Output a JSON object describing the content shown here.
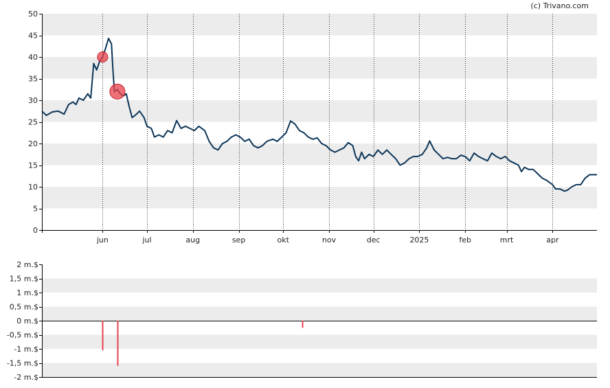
{
  "copyright": "(c) Trivano.com",
  "chart_data": [
    {
      "type": "line",
      "title": "",
      "xlabel": "",
      "ylabel": "",
      "ylim": [
        0,
        50
      ],
      "yticks": [
        "0",
        "5",
        "10",
        "15",
        "20",
        "25",
        "30",
        "35",
        "40",
        "45",
        "50"
      ],
      "grid": true,
      "x_tick_labels": [
        "jun",
        "jul",
        "aug",
        "sep",
        "okt",
        "nov",
        "dec",
        "2025",
        "feb",
        "mrt",
        "apr"
      ],
      "x_domain": [
        "2024-04-21",
        "2025-05-01"
      ],
      "x_ticks": [
        "2024-06-01",
        "2024-07-01",
        "2024-08-01",
        "2024-09-01",
        "2024-10-01",
        "2024-11-01",
        "2024-12-01",
        "2025-01-01",
        "2025-02-01",
        "2025-03-01",
        "2025-04-01"
      ],
      "series": [
        {
          "color": "#0b3558",
          "points": [
            [
              "2024-04-21",
              27.5
            ],
            [
              "2024-04-24",
              26.5
            ],
            [
              "2024-04-28",
              27.3
            ],
            [
              "2024-05-02",
              27.5
            ],
            [
              "2024-05-06",
              26.8
            ],
            [
              "2024-05-09",
              29.0
            ],
            [
              "2024-05-12",
              29.6
            ],
            [
              "2024-05-14",
              29.0
            ],
            [
              "2024-05-16",
              30.5
            ],
            [
              "2024-05-19",
              30.0
            ],
            [
              "2024-05-22",
              31.5
            ],
            [
              "2024-05-24",
              30.5
            ],
            [
              "2024-05-26",
              38.5
            ],
            [
              "2024-05-28",
              37.0
            ],
            [
              "2024-05-30",
              39.0
            ],
            [
              "2024-06-01",
              40.0
            ],
            [
              "2024-06-03",
              42.0
            ],
            [
              "2024-06-05",
              44.3
            ],
            [
              "2024-06-07",
              43.0
            ],
            [
              "2024-06-08",
              37.0
            ],
            [
              "2024-06-09",
              32.0
            ],
            [
              "2024-06-11",
              32.5
            ],
            [
              "2024-06-13",
              31.5
            ],
            [
              "2024-06-15",
              31.0
            ],
            [
              "2024-06-17",
              31.5
            ],
            [
              "2024-06-19",
              28.5
            ],
            [
              "2024-06-21",
              26.0
            ],
            [
              "2024-06-23",
              26.5
            ],
            [
              "2024-06-26",
              27.5
            ],
            [
              "2024-06-29",
              26.0
            ],
            [
              "2024-07-01",
              24.0
            ],
            [
              "2024-07-04",
              23.5
            ],
            [
              "2024-07-06",
              21.5
            ],
            [
              "2024-07-09",
              22.0
            ],
            [
              "2024-07-12",
              21.5
            ],
            [
              "2024-07-15",
              23.0
            ],
            [
              "2024-07-18",
              22.5
            ],
            [
              "2024-07-21",
              25.3
            ],
            [
              "2024-07-24",
              23.5
            ],
            [
              "2024-07-27",
              24.0
            ],
            [
              "2024-07-30",
              23.5
            ],
            [
              "2024-08-02",
              23.0
            ],
            [
              "2024-08-05",
              24.0
            ],
            [
              "2024-08-09",
              23.0
            ],
            [
              "2024-08-12",
              20.5
            ],
            [
              "2024-08-15",
              19.0
            ],
            [
              "2024-08-18",
              18.5
            ],
            [
              "2024-08-21",
              20.0
            ],
            [
              "2024-08-24",
              20.5
            ],
            [
              "2024-08-27",
              21.5
            ],
            [
              "2024-08-30",
              22.0
            ],
            [
              "2024-09-02",
              21.5
            ],
            [
              "2024-09-05",
              20.5
            ],
            [
              "2024-09-08",
              21.0
            ],
            [
              "2024-09-11",
              19.5
            ],
            [
              "2024-09-14",
              19.0
            ],
            [
              "2024-09-17",
              19.5
            ],
            [
              "2024-09-20",
              20.5
            ],
            [
              "2024-09-24",
              21.0
            ],
            [
              "2024-09-27",
              20.5
            ],
            [
              "2024-09-30",
              21.5
            ],
            [
              "2024-10-03",
              22.5
            ],
            [
              "2024-10-06",
              25.2
            ],
            [
              "2024-10-09",
              24.5
            ],
            [
              "2024-10-12",
              23.0
            ],
            [
              "2024-10-15",
              22.5
            ],
            [
              "2024-10-18",
              21.5
            ],
            [
              "2024-10-21",
              21.0
            ],
            [
              "2024-10-24",
              21.3
            ],
            [
              "2024-10-27",
              20.0
            ],
            [
              "2024-10-30",
              19.5
            ],
            [
              "2024-11-02",
              18.5
            ],
            [
              "2024-11-05",
              18.0
            ],
            [
              "2024-11-08",
              18.5
            ],
            [
              "2024-11-11",
              19.0
            ],
            [
              "2024-11-14",
              20.2
            ],
            [
              "2024-11-17",
              19.5
            ],
            [
              "2024-11-19",
              17.0
            ],
            [
              "2024-11-21",
              16.0
            ],
            [
              "2024-11-23",
              18.0
            ],
            [
              "2024-11-25",
              16.5
            ],
            [
              "2024-11-28",
              17.5
            ],
            [
              "2024-12-01",
              17.0
            ],
            [
              "2024-12-04",
              18.5
            ],
            [
              "2024-12-07",
              17.5
            ],
            [
              "2024-12-10",
              18.5
            ],
            [
              "2024-12-13",
              17.5
            ],
            [
              "2024-12-16",
              16.5
            ],
            [
              "2024-12-19",
              15.0
            ],
            [
              "2024-12-22",
              15.5
            ],
            [
              "2024-12-25",
              16.5
            ],
            [
              "2024-12-28",
              17.0
            ],
            [
              "2024-12-31",
              17.0
            ],
            [
              "2025-01-03",
              17.5
            ],
            [
              "2025-01-06",
              19.0
            ],
            [
              "2025-01-08",
              20.6
            ],
            [
              "2025-01-11",
              18.5
            ],
            [
              "2025-01-14",
              17.5
            ],
            [
              "2025-01-17",
              16.5
            ],
            [
              "2025-01-20",
              16.8
            ],
            [
              "2025-01-23",
              16.5
            ],
            [
              "2025-01-26",
              16.5
            ],
            [
              "2025-01-29",
              17.3
            ],
            [
              "2025-02-01",
              17.0
            ],
            [
              "2025-02-04",
              16.0
            ],
            [
              "2025-02-07",
              17.8
            ],
            [
              "2025-02-10",
              17.0
            ],
            [
              "2025-02-13",
              16.5
            ],
            [
              "2025-02-16",
              16.0
            ],
            [
              "2025-02-19",
              17.8
            ],
            [
              "2025-02-22",
              17.0
            ],
            [
              "2025-02-25",
              16.5
            ],
            [
              "2025-02-28",
              17.0
            ],
            [
              "2025-03-03",
              16.0
            ],
            [
              "2025-03-06",
              15.5
            ],
            [
              "2025-03-09",
              15.0
            ],
            [
              "2025-03-11",
              13.5
            ],
            [
              "2025-03-13",
              14.5
            ],
            [
              "2025-03-16",
              14.0
            ],
            [
              "2025-03-19",
              14.0
            ],
            [
              "2025-03-22",
              13.0
            ],
            [
              "2025-03-25",
              12.0
            ],
            [
              "2025-03-28",
              11.5
            ],
            [
              "2025-04-01",
              10.5
            ],
            [
              "2025-04-03",
              9.5
            ],
            [
              "2025-04-06",
              9.5
            ],
            [
              "2025-04-09",
              9.0
            ],
            [
              "2025-04-11",
              9.2
            ],
            [
              "2025-04-14",
              10.0
            ],
            [
              "2025-04-17",
              10.5
            ],
            [
              "2025-04-20",
              10.5
            ],
            [
              "2025-04-23",
              12.0
            ],
            [
              "2025-04-26",
              12.8
            ],
            [
              "2025-05-01",
              12.8
            ]
          ]
        }
      ],
      "markers": [
        {
          "date": "2024-06-01",
          "value": 40.0,
          "size": "small",
          "color": "#e8424b"
        },
        {
          "date": "2024-06-11",
          "value": 32.0,
          "size": "large",
          "color": "#e8424b"
        }
      ]
    },
    {
      "type": "bar",
      "title": "",
      "xlabel": "",
      "ylabel": "",
      "ylim": [
        -2,
        2
      ],
      "yticks": [
        "-2 m.$",
        "-1,5 m.$",
        "-1 m.$",
        "-0,5 m.$",
        "0 m.$",
        "0,5 m.$",
        "1 m.$",
        "1,5 m.$",
        "2 m.$"
      ],
      "grid": true,
      "bars": [
        {
          "date": "2024-06-01",
          "value": -1.05,
          "color": "#e8424b"
        },
        {
          "date": "2024-06-11",
          "value": -1.6,
          "color": "#e8424b"
        },
        {
          "date": "2024-10-14",
          "value": -0.25,
          "color": "#e8424b"
        }
      ]
    }
  ]
}
